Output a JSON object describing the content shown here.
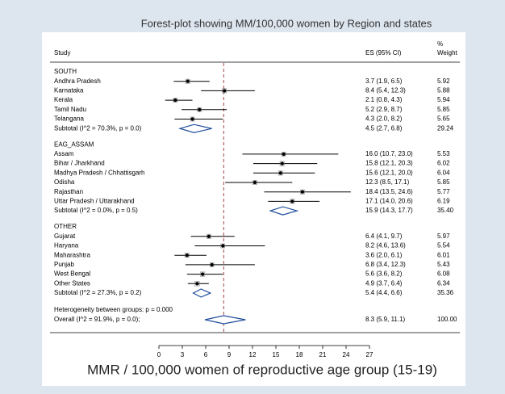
{
  "chart_data": {
    "type": "forest",
    "title": "Forest-plot showing MM/100,000 women by Region and states",
    "xlabel": "MMR / 100,000 women of reproductive age group (15-19)",
    "study_header": "Study",
    "es_header": "ES (95% CI)",
    "weight_header": [
      "%",
      "Weight"
    ],
    "xlim": [
      0,
      27
    ],
    "xticks": [
      0,
      3,
      6,
      9,
      12,
      15,
      18,
      21,
      24,
      27
    ],
    "color": "#000000",
    "diamond_color": "#1f4e9c",
    "ref_color": "#8b1a1a",
    "groups": [
      {
        "name": "SOUTH",
        "rows": [
          {
            "label": "Andhra Pradesh",
            "es": 3.7,
            "lo": 1.9,
            "hi": 6.5,
            "ci_label": "3.7 (1.9, 6.5)",
            "weight": 5.92
          },
          {
            "label": "Karnataka",
            "es": 8.4,
            "lo": 5.4,
            "hi": 12.3,
            "ci_label": "8.4 (5.4, 12.3)",
            "weight": 5.88
          },
          {
            "label": "Kerala",
            "es": 2.1,
            "lo": 0.8,
            "hi": 4.3,
            "ci_label": "2.1 (0.8, 4.3)",
            "weight": 5.94
          },
          {
            "label": "Tamil Nadu",
            "es": 5.2,
            "lo": 2.9,
            "hi": 8.7,
            "ci_label": "5.2 (2.9, 8.7)",
            "weight": 5.85
          },
          {
            "label": "Telangana",
            "es": 4.3,
            "lo": 2.0,
            "hi": 8.2,
            "ci_label": "4.3 (2.0, 8.2)",
            "weight": 5.65
          }
        ],
        "subtotal": {
          "label": "Subtotal  (I^2 = 70.3%, p = 0.0)",
          "es": 4.5,
          "lo": 2.7,
          "hi": 6.8,
          "ci_label": "4.5 (2.7, 6.8)",
          "weight": 29.24
        }
      },
      {
        "name": "EAG_ASSAM",
        "rows": [
          {
            "label": "Assam",
            "es": 16.0,
            "lo": 10.7,
            "hi": 23.0,
            "ci_label": "16.0 (10.7, 23.0)",
            "weight": 5.53
          },
          {
            "label": "Bihar / Jharkhand",
            "es": 15.8,
            "lo": 12.1,
            "hi": 20.3,
            "ci_label": "15.8 (12.1, 20.3)",
            "weight": 6.02
          },
          {
            "label": "Madhya Pradesh / Chhattisgarh",
            "es": 15.6,
            "lo": 12.1,
            "hi": 20.0,
            "ci_label": "15.6 (12.1, 20.0)",
            "weight": 6.04
          },
          {
            "label": "Odisha",
            "es": 12.3,
            "lo": 8.5,
            "hi": 17.1,
            "ci_label": "12.3 (8.5, 17.1)",
            "weight": 5.85
          },
          {
            "label": "Rajasthan",
            "es": 18.4,
            "lo": 13.5,
            "hi": 24.6,
            "ci_label": "18.4 (13.5, 24.6)",
            "weight": 5.77
          },
          {
            "label": "Uttar Pradesh / Uttarakhand",
            "es": 17.1,
            "lo": 14.0,
            "hi": 20.6,
            "ci_label": "17.1 (14.0, 20.6)",
            "weight": 6.19
          }
        ],
        "subtotal": {
          "label": "Subtotal  (I^2 = 0.0%, p = 0.5)",
          "es": 15.9,
          "lo": 14.3,
          "hi": 17.7,
          "ci_label": "15.9 (14.3, 17.7)",
          "weight": 35.4,
          "weight_label": "35.40"
        }
      },
      {
        "name": "OTHER",
        "rows": [
          {
            "label": "Gujarat",
            "es": 6.4,
            "lo": 4.1,
            "hi": 9.7,
            "ci_label": "6.4 (4.1, 9.7)",
            "weight": 5.97
          },
          {
            "label": "Haryana",
            "es": 8.2,
            "lo": 4.6,
            "hi": 13.6,
            "ci_label": "8.2 (4.6, 13.6)",
            "weight": 5.54
          },
          {
            "label": "Maharashtra",
            "es": 3.6,
            "lo": 2.0,
            "hi": 6.1,
            "ci_label": "3.6 (2.0, 6.1)",
            "weight": 6.01
          },
          {
            "label": "Punjab",
            "es": 6.8,
            "lo": 3.4,
            "hi": 12.3,
            "ci_label": "6.8 (3.4, 12.3)",
            "weight": 5.43
          },
          {
            "label": "West Bengal",
            "es": 5.6,
            "lo": 3.6,
            "hi": 8.2,
            "ci_label": "5.6 (3.6, 8.2)",
            "weight": 6.08
          },
          {
            "label": "Other States",
            "es": 4.9,
            "lo": 3.7,
            "hi": 6.4,
            "ci_label": "4.9 (3.7, 6.4)",
            "weight": 6.34
          }
        ],
        "subtotal": {
          "label": "Subtotal  (I^2 = 27.3%, p = 0.2)",
          "es": 5.4,
          "lo": 4.4,
          "hi": 6.6,
          "ci_label": "5.4 (4.4, 6.6)",
          "weight": 35.36
        }
      }
    ],
    "heterogeneity": "Heterogeneity between groups: p = 0.000",
    "overall": {
      "label": "Overall  (I^2 = 91.9%, p = 0.0);",
      "es": 8.3,
      "lo": 5.9,
      "hi": 11.1,
      "ci_label": "8.3 (5.9, 11.1)",
      "weight": 100,
      "weight_label": "100.00"
    }
  }
}
